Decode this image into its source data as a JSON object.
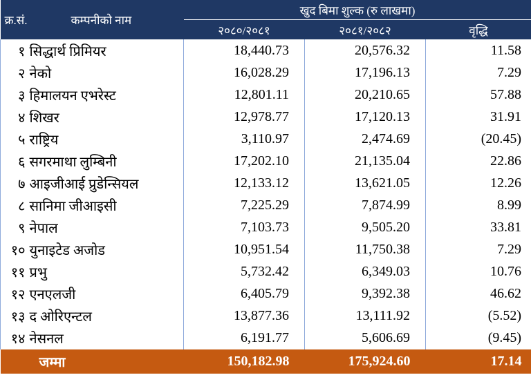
{
  "header": {
    "serial": "क्र.सं.",
    "name": "कम्पनीको नाम",
    "group": "खुद बिमा शुल्क (रु लाखमा)",
    "col1": "२०८०/२०८१",
    "col2": "२०८१/२०८२",
    "col3": "वृद्धि"
  },
  "table": {
    "rows": [
      [
        "१",
        "सिद्धार्थ प्रिमियर",
        "18,440.73",
        "20,576.32",
        "11.58"
      ],
      [
        "२",
        "नेको",
        "16,028.29",
        "17,196.13",
        "7.29"
      ],
      [
        "३",
        "हिमालयन एभरेस्ट",
        "12,801.11",
        "20,210.65",
        "57.88"
      ],
      [
        "४",
        "शिखर",
        "12,978.77",
        "17,120.13",
        "31.91"
      ],
      [
        "५",
        "राष्ट्रिय",
        "3,110.97",
        "2,474.69",
        "(20.45)"
      ],
      [
        "६",
        "सगरमाथा लुम्बिनी",
        "17,202.10",
        "21,135.04",
        "22.86"
      ],
      [
        "७",
        "आइजीआई प्रुडेन्सियल",
        "12,133.12",
        "13,621.05",
        "12.26"
      ],
      [
        "८",
        "सानिमा जीआइसी",
        "7,225.29",
        "7,874.99",
        "8.99"
      ],
      [
        "९",
        "नेपाल",
        "7,103.73",
        "9,505.20",
        "33.81"
      ],
      [
        "१०",
        "युनाइटेड अजोड",
        "10,951.54",
        "11,750.38",
        "7.29"
      ],
      [
        "११",
        "प्रभु",
        "5,732.42",
        "6,349.03",
        "10.76"
      ],
      [
        "१२",
        "एनएलजी",
        "6,405.79",
        "9,392.38",
        "46.62"
      ],
      [
        "१३",
        "द ओरिएन्टल",
        "13,877.36",
        "13,111.92",
        "(5.52)"
      ],
      [
        "१४",
        "नेसनल",
        "6,191.77",
        "5,606.69",
        "(9.45)"
      ]
    ],
    "total": [
      "जम्मा",
      "150,182.98",
      "175,924.60",
      "17.14"
    ]
  }
}
